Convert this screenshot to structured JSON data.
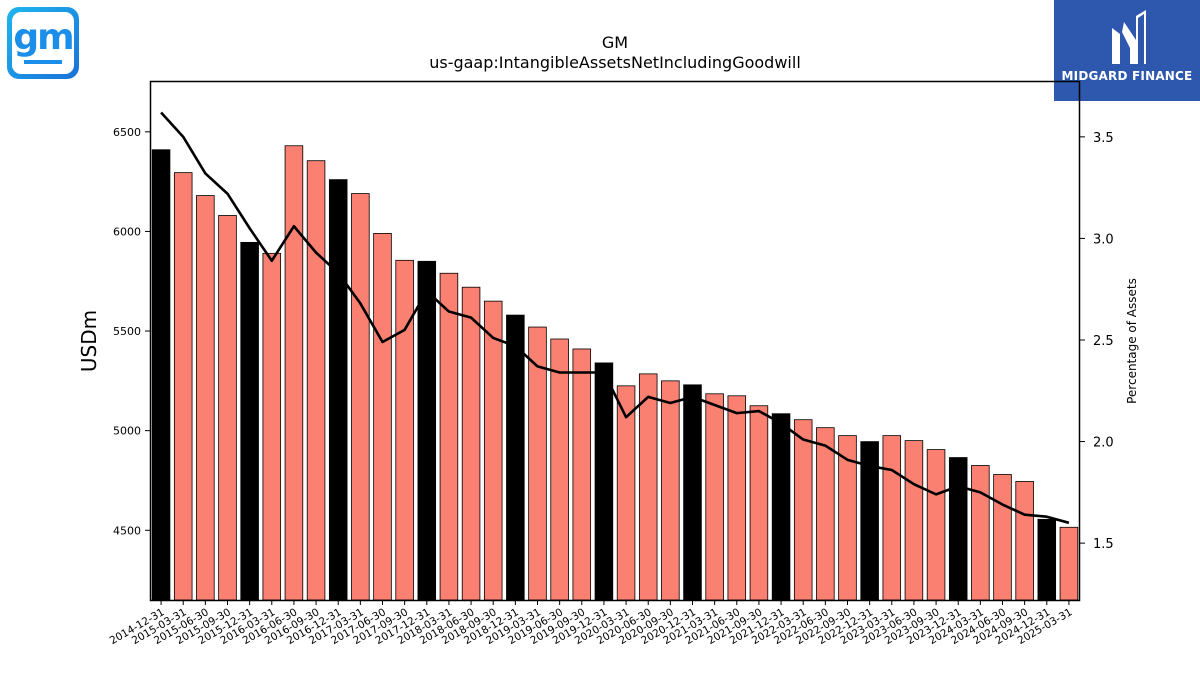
{
  "logos": {
    "left": {
      "text": "gm",
      "accent": "#1a8ee8"
    },
    "right": {
      "text": "MIDGARD FINANCE",
      "background": "#2d58ad"
    }
  },
  "chart_data": {
    "type": "bar",
    "title": "GM",
    "subtitle": "us-gaap:IntangibleAssetsNetIncludingGoodwill",
    "ylabel": "USDm",
    "y2label": "Percentage of Assets",
    "ylim": [
      4150,
      6750
    ],
    "y2lim": [
      1.22,
      3.77
    ],
    "yticks": [
      4500,
      5000,
      5500,
      6000,
      6500
    ],
    "y2ticks": [
      "1.5",
      "2.0",
      "2.5",
      "3.0",
      "3.5"
    ],
    "categories": [
      "2014-12-31",
      "2015-03-31",
      "2015-06-30",
      "2015-09-30",
      "2015-12-31",
      "2016-03-31",
      "2016-06-30",
      "2016-09-30",
      "2016-12-31",
      "2017-03-31",
      "2017-06-30",
      "2017-09-30",
      "2017-12-31",
      "2018-03-31",
      "2018-06-30",
      "2018-09-30",
      "2018-12-31",
      "2019-03-31",
      "2019-06-30",
      "2019-09-30",
      "2019-12-31",
      "2020-03-31",
      "2020-06-30",
      "2020-09-30",
      "2020-12-31",
      "2021-03-31",
      "2021-06-30",
      "2021-09-30",
      "2021-12-31",
      "2022-03-31",
      "2022-06-30",
      "2022-09-30",
      "2022-12-31",
      "2023-03-31",
      "2023-06-30",
      "2023-09-30",
      "2023-12-31",
      "2024-03-31",
      "2024-06-30",
      "2024-09-30",
      "2024-12-31",
      "2025-03-31"
    ],
    "series": [
      {
        "type": "bar",
        "values": [
          6410,
          6295,
          6180,
          6080,
          5945,
          5890,
          6430,
          6355,
          6260,
          6190,
          5990,
          5855,
          5850,
          5790,
          5720,
          5650,
          5580,
          5520,
          5460,
          5410,
          5340,
          5225,
          5285,
          5250,
          5230,
          5185,
          5175,
          5125,
          5085,
          5055,
          5015,
          4975,
          4945,
          4975,
          4950,
          4905,
          4865,
          4825,
          4780,
          4745,
          4555,
          4515
        ],
        "colors": {
          "year_end": "#000000",
          "quarter": "#fa8072"
        }
      },
      {
        "type": "line",
        "axis": "y2",
        "values": [
          3.62,
          3.5,
          3.32,
          3.22,
          3.05,
          2.89,
          3.06,
          2.93,
          2.83,
          2.68,
          2.49,
          2.55,
          2.74,
          2.64,
          2.61,
          2.51,
          2.47,
          2.37,
          2.34,
          2.34,
          2.34,
          2.12,
          2.22,
          2.19,
          2.22,
          2.18,
          2.14,
          2.15,
          2.09,
          2.01,
          1.98,
          1.91,
          1.88,
          1.86,
          1.79,
          1.74,
          1.78,
          1.75,
          1.69,
          1.64,
          1.63,
          1.6
        ],
        "color": "#000000"
      }
    ],
    "grid": false
  }
}
